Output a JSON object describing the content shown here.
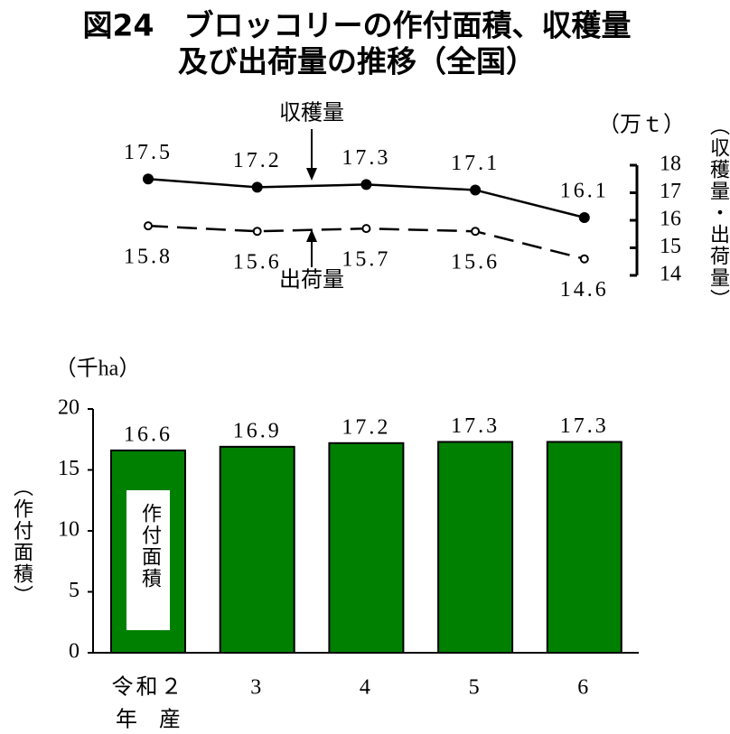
{
  "title": [
    "図24　ブロッコリーの作付面積、収穫量",
    "及び出荷量の推移（全国）"
  ],
  "chart_data": [
    {
      "type": "line",
      "y_unit": "（万ｔ）",
      "y_label": "（収穫量・出荷量）",
      "ylim": [
        14,
        18
      ],
      "yticks": [
        14,
        15,
        16,
        17,
        18
      ],
      "series": [
        {
          "name": "収穫量",
          "color": "#000000",
          "dashed": false,
          "marker": "filled",
          "values": [
            17.5,
            17.2,
            17.3,
            17.1,
            16.1
          ]
        },
        {
          "name": "出荷量",
          "color": "#000000",
          "dashed": true,
          "marker": "open",
          "values": [
            15.8,
            15.6,
            15.7,
            15.6,
            14.6
          ]
        }
      ]
    },
    {
      "type": "bar",
      "y_unit": "（千ha）",
      "y_label": "（作付面積）",
      "categories": [
        "令和２",
        "3",
        "4",
        "5",
        "6"
      ],
      "category_suffix": "年　産",
      "series": [
        {
          "name": "作付面積",
          "color": "#008000",
          "values": [
            16.6,
            16.9,
            17.2,
            17.3,
            17.3
          ]
        }
      ],
      "ylim": [
        0,
        20
      ],
      "yticks": [
        0,
        5,
        10,
        15,
        20
      ]
    }
  ]
}
